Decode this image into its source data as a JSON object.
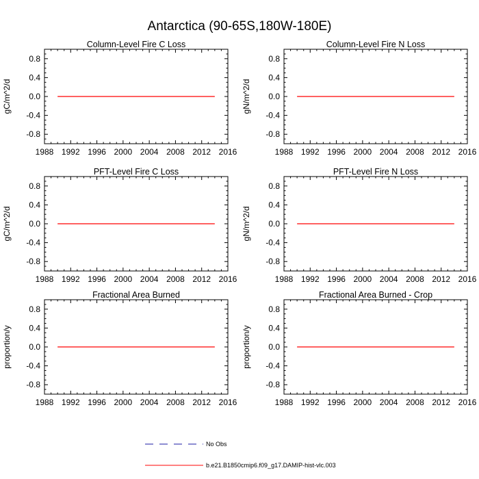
{
  "figure": {
    "title": "Antarctica (90-65S,180W-180E)"
  },
  "legend": {
    "entries": [
      {
        "label": "No Obs",
        "color": "#1a1aa6",
        "style": "dashed"
      },
      {
        "label": "b.e21.B1850cmip6.f09_g17.DAMIP-hist-vlc.003",
        "color": "#ff0000",
        "style": "solid"
      }
    ]
  },
  "chart_data": [
    {
      "type": "line",
      "title": "Column-Level Fire C Loss",
      "xlabel": "",
      "ylabel": "gC/m^2/d",
      "xlim": [
        1988,
        2016
      ],
      "ylim": [
        -1,
        1
      ],
      "xticks": [
        1988,
        1992,
        1996,
        2000,
        2004,
        2008,
        2012,
        2016
      ],
      "yticks": [
        -0.8,
        -0.4,
        0.0,
        0.4,
        0.8
      ],
      "ytick_labels": [
        "-0.8",
        "-0.4",
        "0.0",
        "0.4",
        "0.8"
      ],
      "series": [
        {
          "name": "b.e21.B1850cmip6.f09_g17.DAMIP-hist-vlc.003",
          "color": "#ff0000",
          "x": [
            1990,
            2014
          ],
          "y": [
            0,
            0
          ]
        }
      ]
    },
    {
      "type": "line",
      "title": "Column-Level Fire N Loss",
      "xlabel": "",
      "ylabel": "gN/m^2/d",
      "xlim": [
        1988,
        2016
      ],
      "ylim": [
        -1,
        1
      ],
      "xticks": [
        1988,
        1992,
        1996,
        2000,
        2004,
        2008,
        2012,
        2016
      ],
      "yticks": [
        -0.8,
        -0.4,
        0.0,
        0.4,
        0.8
      ],
      "ytick_labels": [
        "-0.8",
        "-0.4",
        "0.0",
        "0.4",
        "0.8"
      ],
      "series": [
        {
          "name": "b.e21.B1850cmip6.f09_g17.DAMIP-hist-vlc.003",
          "color": "#ff0000",
          "x": [
            1990,
            2014
          ],
          "y": [
            0,
            0
          ]
        }
      ]
    },
    {
      "type": "line",
      "title": "PFT-Level Fire C Loss",
      "xlabel": "",
      "ylabel": "gC/m^2/d",
      "xlim": [
        1988,
        2016
      ],
      "ylim": [
        -1,
        1
      ],
      "xticks": [
        1988,
        1992,
        1996,
        2000,
        2004,
        2008,
        2012,
        2016
      ],
      "yticks": [
        -0.8,
        -0.4,
        0.0,
        0.4,
        0.8
      ],
      "ytick_labels": [
        "-0.8",
        "-0.4",
        "0.0",
        "0.4",
        "0.8"
      ],
      "series": [
        {
          "name": "b.e21.B1850cmip6.f09_g17.DAMIP-hist-vlc.003",
          "color": "#ff0000",
          "x": [
            1990,
            2014
          ],
          "y": [
            0,
            0
          ]
        }
      ]
    },
    {
      "type": "line",
      "title": "PFT-Level Fire N Loss",
      "xlabel": "",
      "ylabel": "gN/m^2/d",
      "xlim": [
        1988,
        2016
      ],
      "ylim": [
        -1,
        1
      ],
      "xticks": [
        1988,
        1992,
        1996,
        2000,
        2004,
        2008,
        2012,
        2016
      ],
      "yticks": [
        -0.8,
        -0.4,
        0.0,
        0.4,
        0.8
      ],
      "ytick_labels": [
        "-0.8",
        "-0.4",
        "0.0",
        "0.4",
        "0.8"
      ],
      "series": [
        {
          "name": "b.e21.B1850cmip6.f09_g17.DAMIP-hist-vlc.003",
          "color": "#ff0000",
          "x": [
            1990,
            2014
          ],
          "y": [
            0,
            0
          ]
        }
      ]
    },
    {
      "type": "line",
      "title": "Fractional Area Burned",
      "xlabel": "",
      "ylabel": "proportion/y",
      "xlim": [
        1988,
        2016
      ],
      "ylim": [
        -1,
        1
      ],
      "xticks": [
        1988,
        1992,
        1996,
        2000,
        2004,
        2008,
        2012,
        2016
      ],
      "yticks": [
        -0.8,
        -0.4,
        0.0,
        0.4,
        0.8
      ],
      "ytick_labels": [
        "-0.8",
        "-0.4",
        "0.0",
        "0.4",
        "0.8"
      ],
      "series": [
        {
          "name": "b.e21.B1850cmip6.f09_g17.DAMIP-hist-vlc.003",
          "color": "#ff0000",
          "x": [
            1990,
            2014
          ],
          "y": [
            0,
            0
          ]
        }
      ]
    },
    {
      "type": "line",
      "title": "Fractional Area Burned - Crop",
      "xlabel": "",
      "ylabel": "proportion/y",
      "xlim": [
        1988,
        2016
      ],
      "ylim": [
        -1,
        1
      ],
      "xticks": [
        1988,
        1992,
        1996,
        2000,
        2004,
        2008,
        2012,
        2016
      ],
      "yticks": [
        -0.8,
        -0.4,
        0.0,
        0.4,
        0.8
      ],
      "ytick_labels": [
        "-0.8",
        "-0.4",
        "0.0",
        "0.4",
        "0.8"
      ],
      "series": [
        {
          "name": "b.e21.B1850cmip6.f09_g17.DAMIP-hist-vlc.003",
          "color": "#ff0000",
          "x": [
            1990,
            2014
          ],
          "y": [
            0,
            0
          ]
        }
      ]
    }
  ]
}
